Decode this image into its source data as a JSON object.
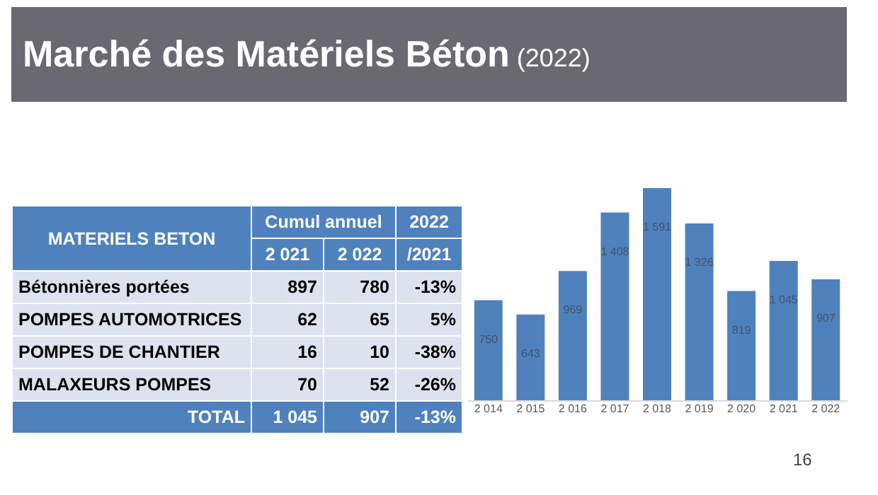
{
  "chart_data": [
    {
      "type": "other",
      "title": "Marché des Matériels Béton (2022)",
      "annotations": [
        "MATERIELS BETON",
        "Cumul annuel",
        "2022",
        "2 021",
        "2 022",
        "/2021",
        "Bétonnières portées",
        "897",
        "780",
        "-13%",
        "POMPES AUTOMOTRICES",
        "62",
        "65",
        "5%",
        "POMPES DE CHANTIER",
        "16",
        "10",
        "-38%",
        "MALAXEURS POMPES",
        "70",
        "52",
        "-26%",
        "TOTAL",
        "1 045",
        "907",
        "-13%",
        "16"
      ]
    },
    {
      "type": "bar",
      "categories": [
        "2 014",
        "2 015",
        "2 016",
        "2 017",
        "2 018",
        "2 019",
        "2 020",
        "2 021",
        "2 022"
      ],
      "values": [
        750,
        643,
        969,
        1408,
        1591,
        1326,
        819,
        1045,
        907
      ],
      "value_labels": [
        "750",
        "643",
        "969",
        "1 408",
        "1 591",
        "1 326",
        "819",
        "1 045",
        "907"
      ],
      "color": "#4f81bd"
    }
  ]
}
